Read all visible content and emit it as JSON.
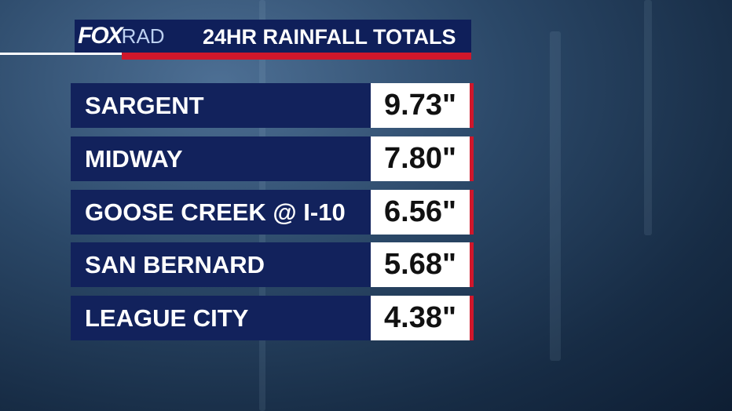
{
  "header": {
    "logo": {
      "fox": "FOX",
      "rad": "RAD"
    },
    "title": "24HR RAINFALL TOTALS"
  },
  "table": {
    "rows": [
      [
        "SARGENT",
        "9.73\""
      ],
      [
        "MIDWAY",
        "7.80\""
      ],
      [
        "GOOSE CREEK @ I-10",
        "6.56\""
      ],
      [
        "SAN BERNARD",
        "5.68\""
      ],
      [
        "LEAGUE CITY",
        "4.38\""
      ]
    ]
  }
}
